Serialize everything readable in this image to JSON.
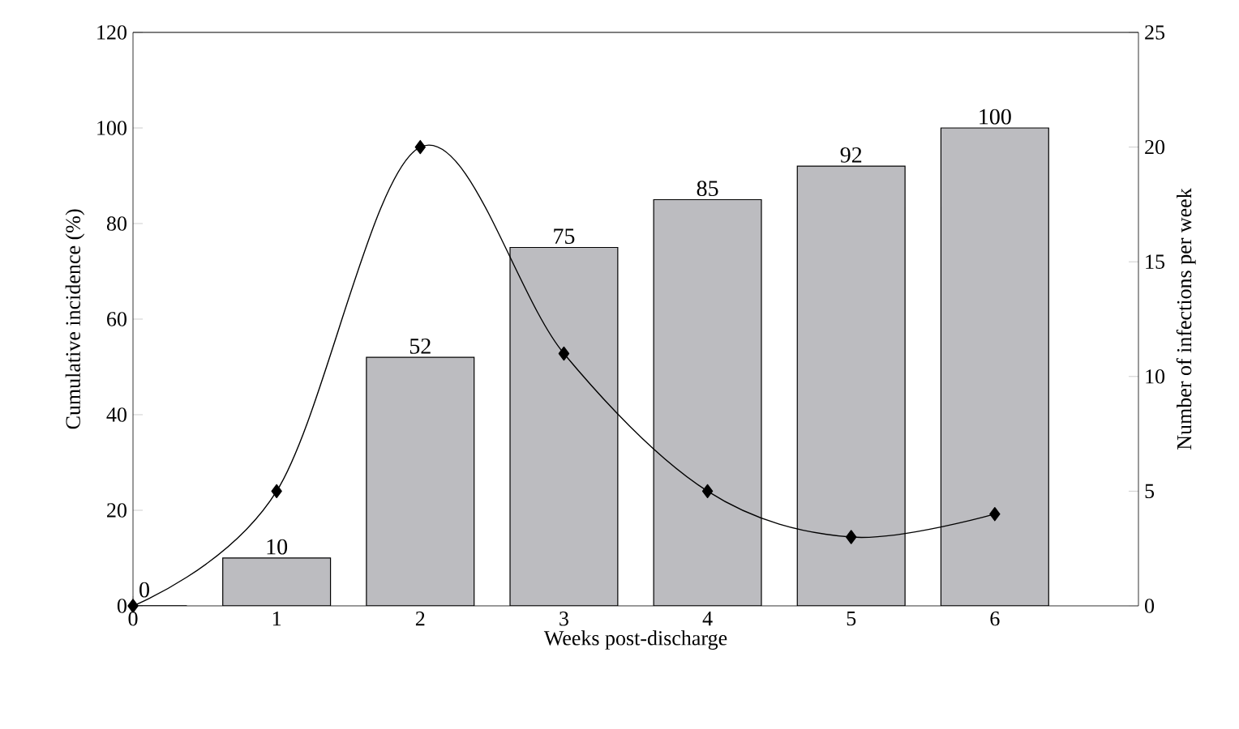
{
  "chart_data": {
    "type": "bar",
    "xlabel": "Weeks post-discharge",
    "ylabel": "Cumulative incidence (%)",
    "y2label": "Number of infections per week",
    "x": [
      0,
      1,
      2,
      3,
      4,
      5,
      6
    ],
    "series": [
      {
        "color": "#bcbcc0",
        "values": [
          0,
          10,
          52,
          75,
          85,
          92,
          100
        ],
        "value_labels": [
          "0",
          "10",
          "52",
          "75",
          "85",
          "92",
          "100"
        ]
      },
      {
        "type": "line",
        "axis": "y2",
        "color": "#000000",
        "marker": "diamond",
        "values": [
          0,
          5,
          20,
          11,
          5,
          3,
          4
        ]
      }
    ],
    "xlim": [
      0,
      7
    ],
    "xticks": [
      0,
      1,
      2,
      3,
      4,
      5,
      6
    ],
    "ylim": [
      0,
      120
    ],
    "yticks": [
      0,
      20,
      40,
      60,
      80,
      100,
      120
    ],
    "y2lim": [
      0,
      25
    ],
    "y2ticks": [
      0,
      5,
      10,
      15,
      20,
      25
    ]
  }
}
